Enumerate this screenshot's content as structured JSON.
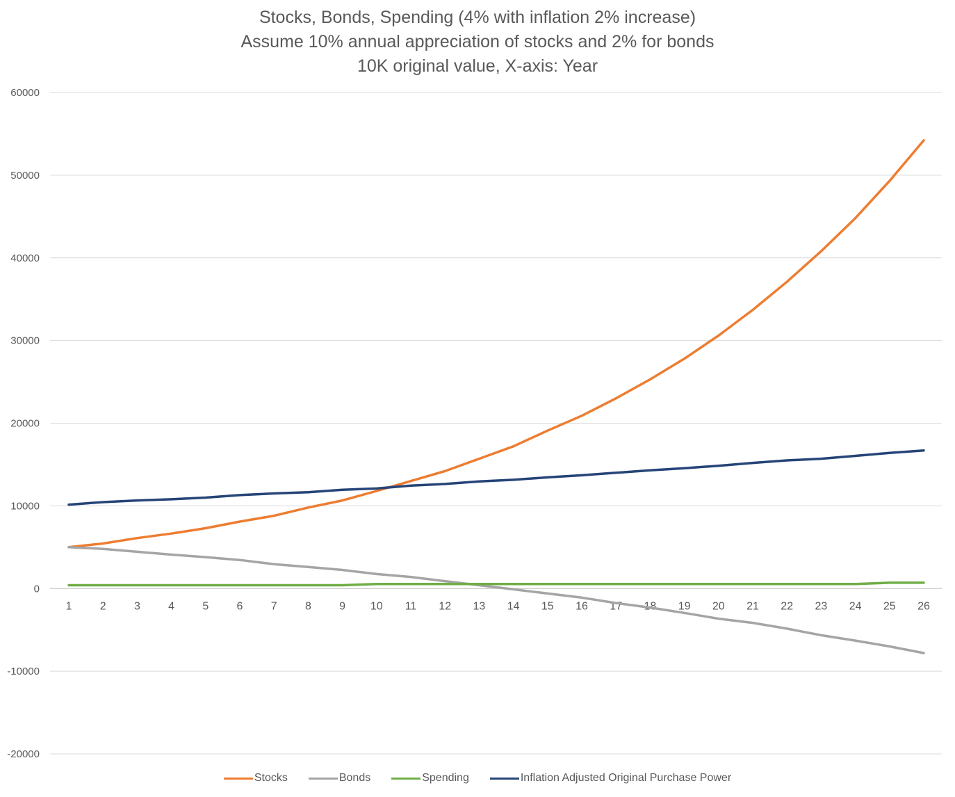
{
  "chart_data": {
    "type": "line",
    "title": "Stocks, Bonds, Spending (4% with inflation 2% increase)",
    "subtitle": [
      "Assume 10% annual appreciation of stocks and 2% for bonds",
      "10K original value, X-axis: Year"
    ],
    "xlabel": "",
    "ylabel": "",
    "x": [
      1,
      2,
      3,
      4,
      5,
      6,
      7,
      8,
      9,
      10,
      11,
      12,
      13,
      14,
      15,
      16,
      17,
      18,
      19,
      20,
      21,
      22,
      23,
      24,
      25,
      26
    ],
    "x_tick_labels": [
      "1",
      "2",
      "3",
      "4",
      "5",
      "6",
      "7",
      "8",
      "9",
      "10",
      "11",
      "12",
      "13",
      "14",
      "15",
      "16",
      "17",
      "18",
      "19",
      "20",
      "21",
      "22",
      "23",
      "24",
      "25",
      "26"
    ],
    "ylim": [
      -20000,
      60000
    ],
    "y_ticks": [
      60000,
      50000,
      40000,
      30000,
      20000,
      10000,
      0,
      -10000,
      -20000
    ],
    "y_tick_labels": [
      "60000",
      "50000",
      "40000",
      "30000",
      "20000",
      "10000",
      "0",
      "-10000",
      "-20000"
    ],
    "grid": "horizontal",
    "legend_position": "bottom",
    "series": [
      {
        "name": "Stocks",
        "color": "#ED7D31",
        "values": [
          5000,
          5450,
          6100,
          6650,
          7300,
          8100,
          8800,
          9800,
          10650,
          11800,
          13000,
          14200,
          15700,
          17200,
          19100,
          20900,
          23000,
          25300,
          27800,
          30600,
          33700,
          37100,
          40800,
          44800,
          49300,
          54200
        ]
      },
      {
        "name": "Bonds",
        "color": "#A5A5A5",
        "values": [
          5000,
          4800,
          4450,
          4100,
          3800,
          3450,
          2950,
          2600,
          2250,
          1750,
          1400,
          900,
          400,
          -100,
          -600,
          -1100,
          -1750,
          -2300,
          -2950,
          -3650,
          -4150,
          -4850,
          -5650,
          -6300,
          -7000,
          -7800
        ]
      },
      {
        "name": "Spending",
        "color": "#70AD47",
        "values": [
          400,
          400,
          400,
          400,
          400,
          400,
          400,
          400,
          400,
          550,
          550,
          550,
          550,
          550,
          550,
          550,
          550,
          550,
          550,
          550,
          550,
          550,
          550,
          550,
          700,
          700
        ]
      },
      {
        "name": "Inflation Adjusted Original Purchase Power",
        "color": "#264478",
        "values": [
          10150,
          10450,
          10650,
          10800,
          11000,
          11300,
          11500,
          11650,
          11950,
          12100,
          12450,
          12650,
          12950,
          13150,
          13450,
          13700,
          14000,
          14300,
          14550,
          14850,
          15200,
          15500,
          15700,
          16050,
          16400,
          16700
        ]
      }
    ]
  }
}
